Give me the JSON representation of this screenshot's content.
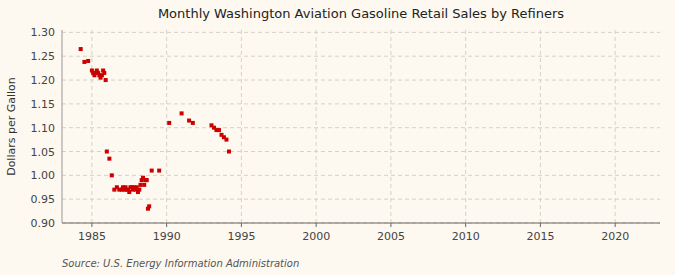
{
  "chart_data": {
    "type": "scatter",
    "title": "Monthly Washington Aviation Gasoline Retail Sales by Refiners",
    "ylabel": "Dollars per Gallon",
    "annotations": [
      "Source: U.S. Energy Information Administration"
    ],
    "color": "#cc0000",
    "marker": "square",
    "grid": true,
    "xlim": [
      1983,
      2023
    ],
    "ylim": [
      0.9,
      1.305
    ],
    "xticks": [
      1985,
      1990,
      1995,
      2000,
      2005,
      2010,
      2015,
      2020
    ],
    "yticks": [
      {
        "value": 0.9,
        "label": "0.90"
      },
      {
        "value": 0.95,
        "label": "0.95"
      },
      {
        "value": 1.0,
        "label": "1.00"
      },
      {
        "value": 1.05,
        "label": "1.05"
      },
      {
        "value": 1.1,
        "label": "1.10"
      },
      {
        "value": 1.15,
        "label": "1.15"
      },
      {
        "value": 1.2,
        "label": "1.20"
      },
      {
        "value": 1.25,
        "label": "1.25"
      },
      {
        "value": 1.3,
        "label": "1.30"
      }
    ],
    "x": [
      1984.25,
      1984.5,
      1984.75,
      1985.0,
      1985.08,
      1985.17,
      1985.25,
      1985.33,
      1985.42,
      1985.5,
      1985.58,
      1985.67,
      1985.75,
      1985.83,
      1985.92,
      1986.0,
      1986.17,
      1986.33,
      1986.5,
      1986.67,
      1986.83,
      1987.0,
      1987.08,
      1987.17,
      1987.25,
      1987.33,
      1987.42,
      1987.5,
      1987.58,
      1987.67,
      1987.75,
      1987.83,
      1987.92,
      1988.0,
      1988.08,
      1988.17,
      1988.25,
      1988.33,
      1988.42,
      1988.5,
      1988.58,
      1988.67,
      1988.75,
      1988.83,
      1989.0,
      1989.5,
      1990.17,
      1991.0,
      1991.5,
      1991.75,
      1993.0,
      1993.17,
      1993.33,
      1993.5,
      1993.67,
      1993.83,
      1994.0,
      1994.17
    ],
    "values": [
      1.265,
      1.238,
      1.24,
      1.22,
      1.215,
      1.21,
      1.215,
      1.22,
      1.215,
      1.21,
      1.205,
      1.21,
      1.22,
      1.215,
      1.2,
      1.05,
      1.035,
      1.0,
      0.97,
      0.975,
      0.97,
      0.97,
      0.975,
      0.97,
      0.975,
      0.97,
      0.97,
      0.965,
      0.975,
      0.975,
      0.97,
      0.975,
      0.97,
      0.975,
      0.965,
      0.97,
      0.98,
      0.99,
      0.995,
      0.98,
      0.99,
      0.99,
      0.93,
      0.935,
      1.01,
      1.01,
      1.11,
      1.13,
      1.115,
      1.11,
      1.105,
      1.1,
      1.095,
      1.095,
      1.085,
      1.08,
      1.075,
      1.05
    ]
  }
}
